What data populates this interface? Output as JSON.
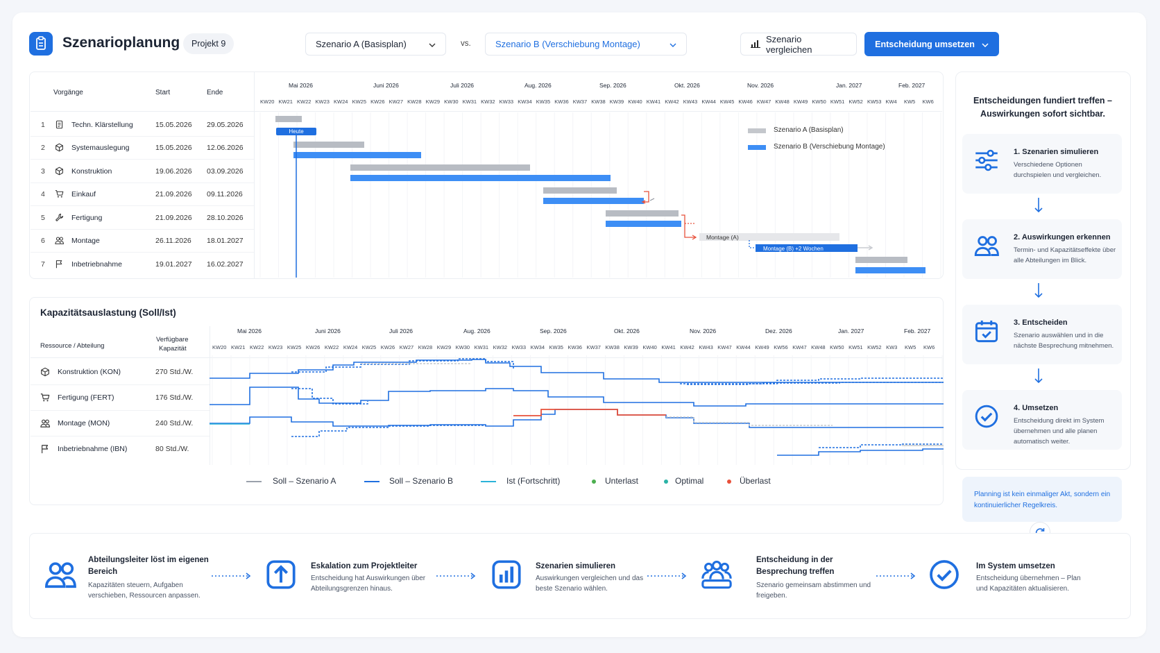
{
  "header": {
    "title": "Szenarioplanung",
    "project": "Projekt 9",
    "scenario_a": "Szenario A (Basisplan)",
    "vs": "vs.",
    "scenario_b": "Szenario B (Verschiebung Montage)",
    "compare": "Szenario vergleichen",
    "implement": "Entscheidung umsetzen"
  },
  "gantt": {
    "col_tasks": "Vorgänge",
    "col_start": "Start",
    "col_end": "Ende",
    "months": [
      "Mai 2026",
      "Juni 2026",
      "Juli 2026",
      "Aug. 2026",
      "Sep. 2026",
      "Okt. 2026",
      "Nov. 2026",
      "Jan. 2027",
      "Feb. 2027"
    ],
    "weeks": [
      "KW20",
      "KW21",
      "KW22",
      "KW23",
      "KW24",
      "KW25",
      "KW26",
      "KW27",
      "KW28",
      "KW29",
      "KW30",
      "KW31",
      "KW32",
      "KW33",
      "KW34",
      "KW35",
      "KW36",
      "KW37",
      "KW38",
      "KW39",
      "KW40",
      "KW41",
      "KW42",
      "KW43",
      "KW44",
      "KW45",
      "KW46",
      "KW47",
      "KW48",
      "KW49",
      "KW50",
      "KW51",
      "KW52",
      "KW53",
      "KW4",
      "KW5",
      "KW6"
    ],
    "tasks": [
      {
        "no": "1",
        "name": "Techn. Klärstellung",
        "start": "15.05.2026",
        "end": "29.05.2026",
        "icon": "document-icon"
      },
      {
        "no": "2",
        "name": "Systemauslegung",
        "start": "15.05.2026",
        "end": "12.06.2026",
        "icon": "cube-icon"
      },
      {
        "no": "3",
        "name": "Konstruktion",
        "start": "19.06.2026",
        "end": "03.09.2026",
        "icon": "cube-icon"
      },
      {
        "no": "4",
        "name": "Einkauf",
        "start": "21.09.2026",
        "end": "09.11.2026",
        "icon": "cart-icon"
      },
      {
        "no": "5",
        "name": "Fertigung",
        "start": "21.09.2026",
        "end": "28.10.2026",
        "icon": "wrench-icon"
      },
      {
        "no": "6",
        "name": "Montage",
        "start": "26.11.2026",
        "end": "18.01.2027",
        "icon": "people-icon"
      },
      {
        "no": "7",
        "name": "Inbetriebnahme",
        "start": "19.01.2027",
        "end": "16.02.2027",
        "icon": "flag-icon"
      }
    ],
    "today": "Heute",
    "legend_a": "Szenario A (Basisplan)",
    "legend_b": "Szenario B (Verschiebung Montage)",
    "label_montage_a": "Montage (A)",
    "label_montage_b": "Montage (B) +2 Wochen"
  },
  "capacity": {
    "title": "Kapazitätsauslastung (Soll/Ist)",
    "col_resource": "Ressource / Abteilung",
    "col_capacity_1": "Verfügbare",
    "col_capacity_2": "Kapazität",
    "months": [
      "Mai 2026",
      "Juni 2026",
      "Juli 2026",
      "Aug. 2026",
      "Sep. 2026",
      "Okt. 2026",
      "Nov. 2026",
      "Dez. 2026",
      "Jan. 2027",
      "Feb. 2027"
    ],
    "weeks": [
      "KW20",
      "KW21",
      "KW22",
      "KW23",
      "KW25",
      "KW26",
      "KW22",
      "KW24",
      "KW25",
      "KW26",
      "KW27",
      "KW28",
      "KW29",
      "KW30",
      "KW31",
      "KW32",
      "KW33",
      "KW34",
      "KW35",
      "KW36",
      "KW37",
      "KW38",
      "KW39",
      "KW40",
      "KW41",
      "KW42",
      "KW43",
      "KW47",
      "KW44",
      "KW49",
      "KW56",
      "KW47",
      "KW48",
      "KW50",
      "KW51",
      "KW52",
      "KW3",
      "KW5",
      "KW6"
    ],
    "resources": [
      {
        "name": "Konstruktion (KON)",
        "capacity": "270 Std./W.",
        "icon": "cube-icon"
      },
      {
        "name": "Fertigung (FERT)",
        "capacity": "176 Std./W.",
        "icon": "cart-icon"
      },
      {
        "name": "Montage (MON)",
        "capacity": "240 Std./W.",
        "icon": "people-icon"
      },
      {
        "name": "Inbetriebnahme (IBN)",
        "capacity": "80 Std./W.",
        "icon": "flag-icon"
      }
    ],
    "legend": {
      "soll_a": "Soll – Szenario A",
      "soll_b": "Soll – Szenario B",
      "ist": "Ist (Fortschritt)",
      "under": "Unterlast",
      "optimal": "Optimal",
      "over": "Überlast"
    },
    "colors": {
      "soll_a": "#9aa1ab",
      "soll_b": "#1f6fe0",
      "ist": "#2bb3d9",
      "under": "#4caf50",
      "optimal": "#2bb3a6",
      "over": "#e8503a"
    }
  },
  "sidebar": {
    "title": "Entscheidungen fundiert treffen – Auswirkungen sofort sichtbar.",
    "steps": [
      {
        "title": "1. Szenarien simulieren",
        "desc": "Verschiedene Optionen durchspielen und vergleichen.",
        "icon": "sliders-icon"
      },
      {
        "title": "2. Auswirkungen erkennen",
        "desc": "Termin- und Kapazitätseffekte über alle Abteilungen im Blick.",
        "icon": "people-icon"
      },
      {
        "title": "3. Entscheiden",
        "desc": "Szenario auswählen und in die nächste Besprechung mitnehmen.",
        "icon": "calendar-check-icon"
      },
      {
        "title": "4. Umsetzen",
        "desc": "Entscheidung direkt im System übernehmen und alle planen automatisch weiter.",
        "icon": "check-circle-icon"
      }
    ],
    "note": "Planning ist kein einmaliger Akt, sondern ein kontinuierlicher Regelkreis."
  },
  "process": [
    {
      "title": "Abteilungsleiter löst im eigenen Bereich",
      "desc": "Kapazitäten steuern, Aufgaben verschieben, Ressourcen anpassen.",
      "icon": "people-icon"
    },
    {
      "title": "Eskalation zum Projektleiter",
      "desc": "Entscheidung hat Auswirkungen über Abteilungsgrenzen hinaus.",
      "icon": "arrow-up-icon"
    },
    {
      "title": "Szenarien simulieren",
      "desc": "Auswirkungen vergleichen und das beste Szenario wählen.",
      "icon": "bar-chart-icon"
    },
    {
      "title": "Entscheidung in der Besprechung treffen",
      "desc": "Szenario gemeinsam abstimmen und freigeben.",
      "icon": "team-icon"
    },
    {
      "title": "Im System umsetzen",
      "desc": "Entscheidung übernehmen – Plan und Kapazitäten aktualisieren.",
      "icon": "check-circle-icon"
    }
  ]
}
